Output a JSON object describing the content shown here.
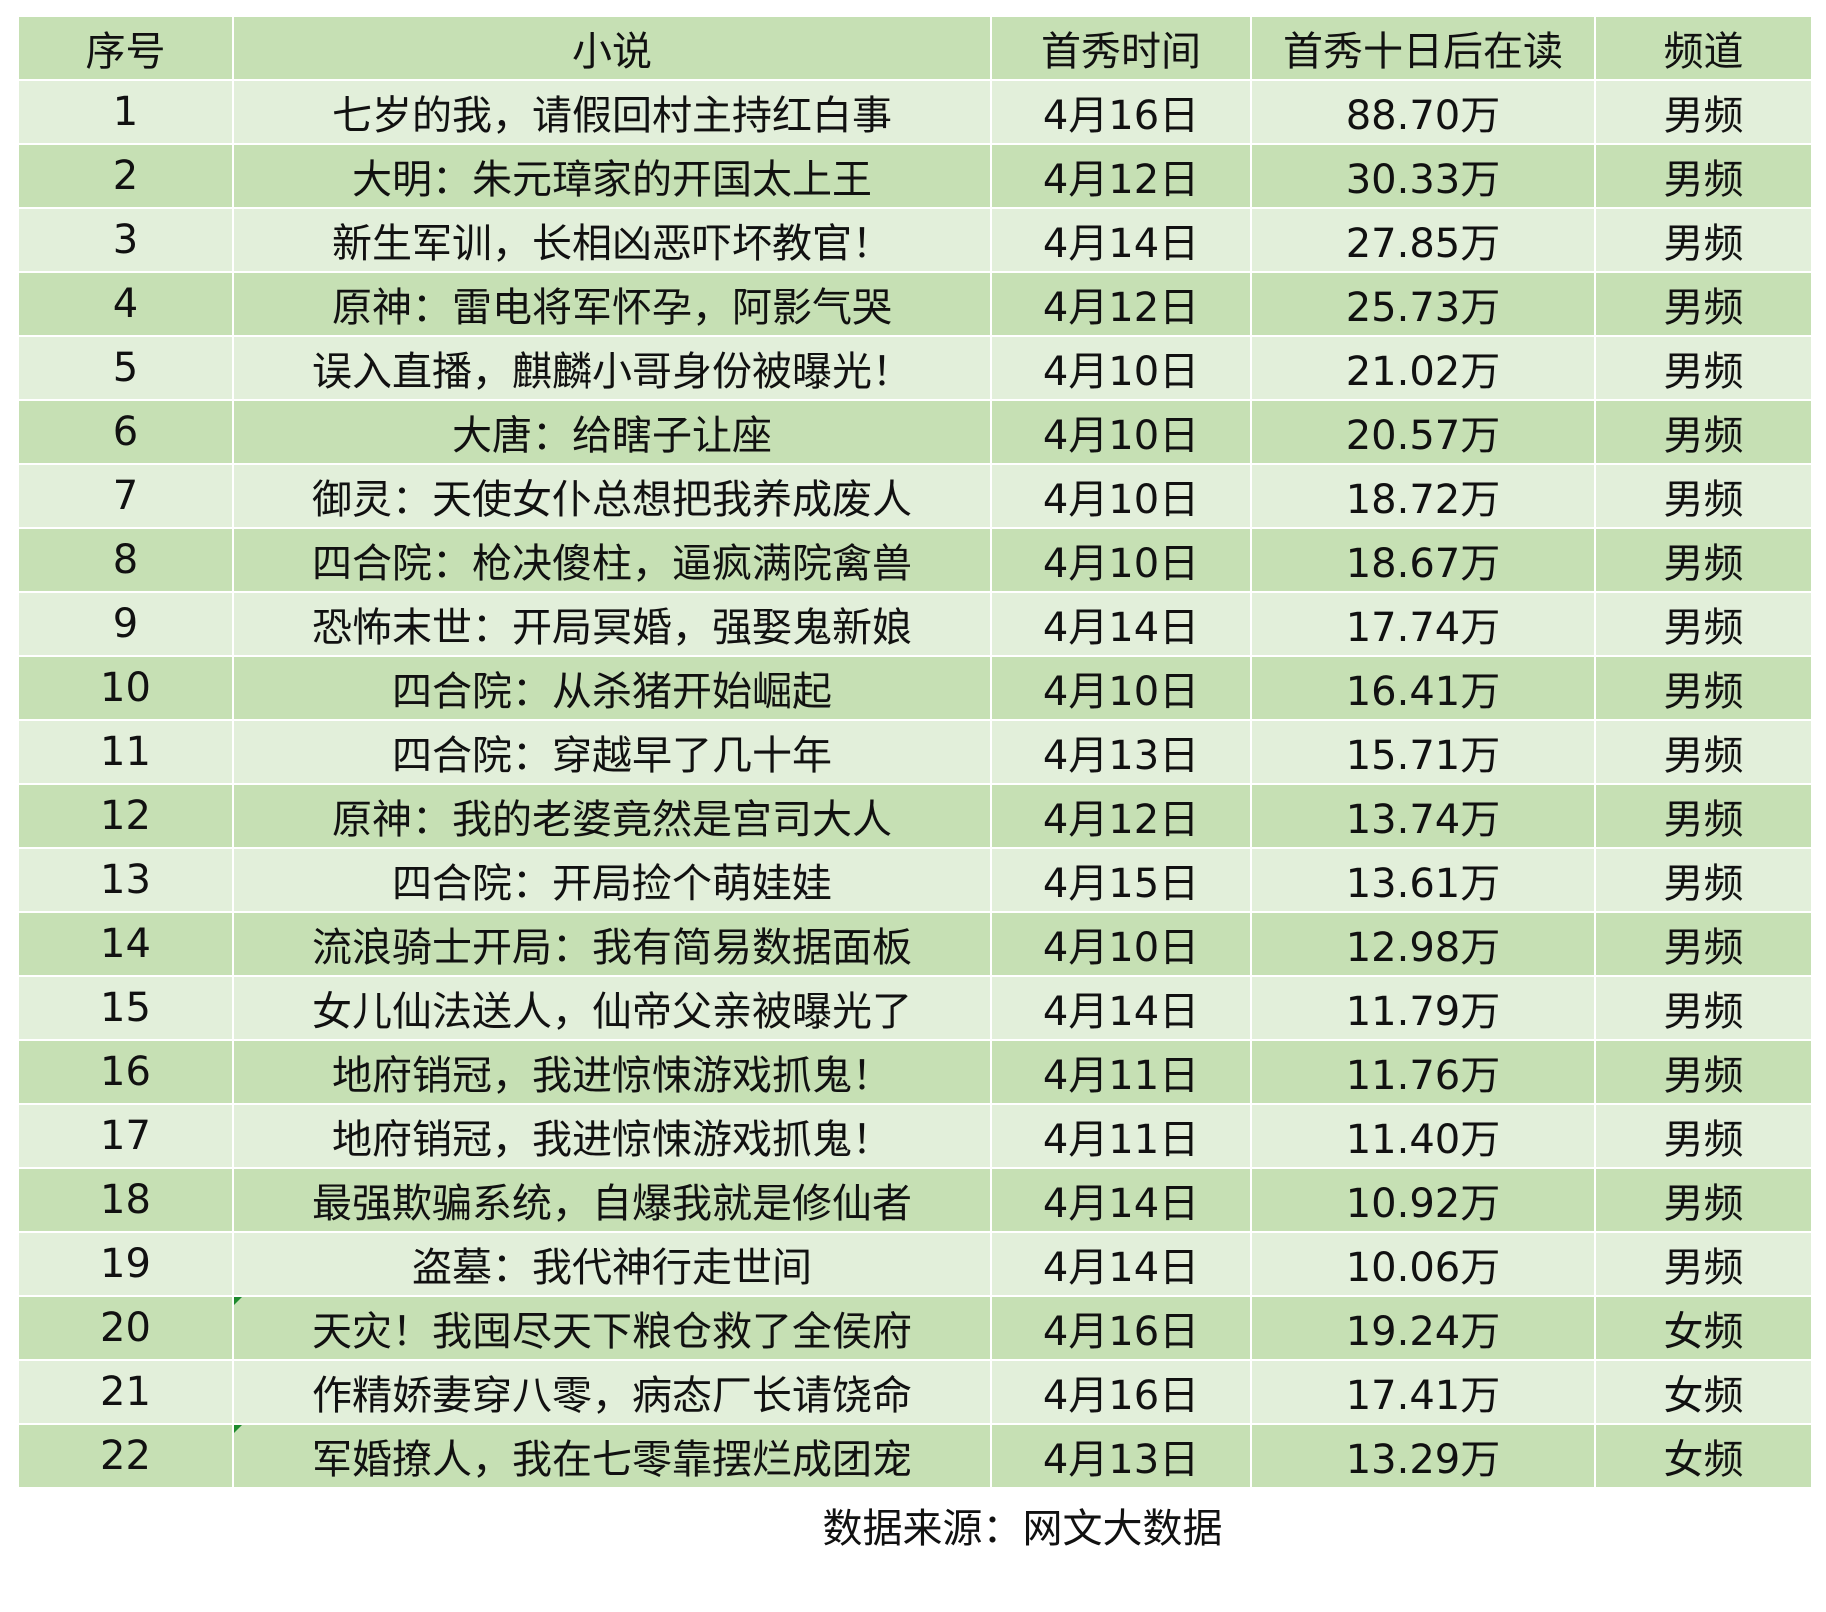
{
  "table": {
    "headers": [
      "序号",
      "小说",
      "首秀时间",
      "首秀十日后在读",
      "频道"
    ],
    "rows": [
      [
        "1",
        "七岁的我，请假回村主持红白事",
        "4月16日",
        "88.70万",
        "男频"
      ],
      [
        "2",
        "大明：朱元璋家的开国太上王",
        "4月12日",
        "30.33万",
        "男频"
      ],
      [
        "3",
        "新生军训，长相凶恶吓坏教官！",
        "4月14日",
        "27.85万",
        "男频"
      ],
      [
        "4",
        "原神：雷电将军怀孕，阿影气哭",
        "4月12日",
        "25.73万",
        "男频"
      ],
      [
        "5",
        "误入直播，麒麟小哥身份被曝光！",
        "4月10日",
        "21.02万",
        "男频"
      ],
      [
        "6",
        "大唐：给瞎子让座",
        "4月10日",
        "20.57万",
        "男频"
      ],
      [
        "7",
        "御灵：天使女仆总想把我养成废人",
        "4月10日",
        "18.72万",
        "男频"
      ],
      [
        "8",
        "四合院：枪决傻柱，逼疯满院禽兽",
        "4月10日",
        "18.67万",
        "男频"
      ],
      [
        "9",
        "恐怖末世：开局冥婚，强娶鬼新娘",
        "4月14日",
        "17.74万",
        "男频"
      ],
      [
        "10",
        "四合院：从杀猪开始崛起",
        "4月10日",
        "16.41万",
        "男频"
      ],
      [
        "11",
        "四合院：穿越早了几十年",
        "4月13日",
        "15.71万",
        "男频"
      ],
      [
        "12",
        "原神：我的老婆竟然是宫司大人",
        "4月12日",
        "13.74万",
        "男频"
      ],
      [
        "13",
        "四合院：开局捡个萌娃娃",
        "4月15日",
        "13.61万",
        "男频"
      ],
      [
        "14",
        "流浪骑士开局：我有简易数据面板",
        "4月10日",
        "12.98万",
        "男频"
      ],
      [
        "15",
        "女儿仙法送人，仙帝父亲被曝光了",
        "4月14日",
        "11.79万",
        "男频"
      ],
      [
        "16",
        "地府销冠，我进惊悚游戏抓鬼！",
        "4月11日",
        "11.76万",
        "男频"
      ],
      [
        "17",
        "地府销冠，我进惊悚游戏抓鬼！",
        "4月11日",
        "11.40万",
        "男频"
      ],
      [
        "18",
        "最强欺骗系统，自爆我就是修仙者",
        "4月14日",
        "10.92万",
        "男频"
      ],
      [
        "19",
        "盗墓：我代神行走世间",
        "4月14日",
        "10.06万",
        "男频"
      ],
      [
        "20",
        "天灾！我囤尽天下粮仓救了全侯府",
        "4月16日",
        "19.24万",
        "女频"
      ],
      [
        "21",
        "作精娇妻穿八零，病态厂长请饶命",
        "4月16日",
        "17.41万",
        "女频"
      ],
      [
        "22",
        "军婚撩人，我在七零靠摆烂成团宠",
        "4月13日",
        "13.29万",
        "女频"
      ]
    ],
    "footer": "数据来源：网文大数据"
  },
  "colors": {
    "header": "#c6e0b4",
    "row_light": "#e2efda",
    "row_dark": "#c6e0b4",
    "comment_marker": "#1e8a2e"
  }
}
